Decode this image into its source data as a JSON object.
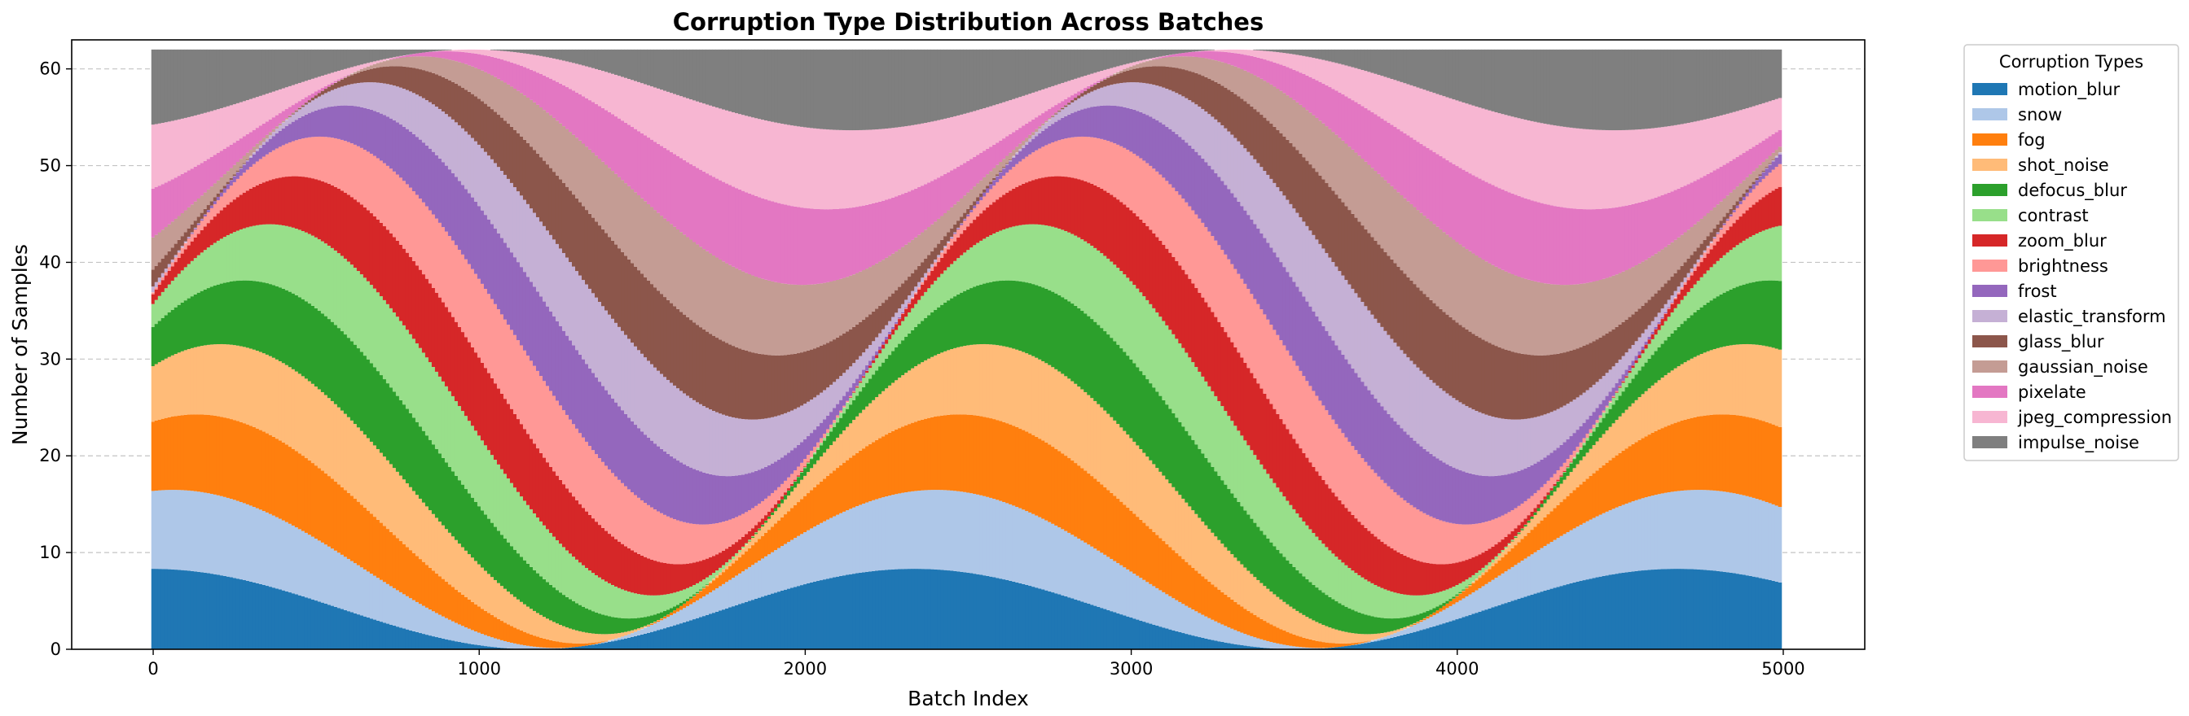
{
  "chart_data": {
    "type": "bar",
    "stacked": true,
    "title": "Corruption Type Distribution Across Batches",
    "xlabel": "Batch Index",
    "ylabel": "Number of Samples",
    "xlim": [
      -250,
      5250
    ],
    "ylim": [
      0,
      63
    ],
    "xticks": [
      0,
      1000,
      2000,
      3000,
      4000,
      5000
    ],
    "yticks": [
      0,
      10,
      20,
      30,
      40,
      50,
      60
    ],
    "grid": {
      "y": true,
      "x": false,
      "style": "dashed"
    },
    "legend": {
      "title": "Corruption Types",
      "placement": "outside-right-top"
    },
    "batch_size": 62,
    "cycle_batches": 2340,
    "peak_fraction": 0.5,
    "series": [
      {
        "name": "motion_blur",
        "color": "#1f77b4",
        "start": 0
      },
      {
        "name": "snow",
        "color": "#aec7e8",
        "start": 135
      },
      {
        "name": "fog",
        "color": "#ff7f0e",
        "start": 285
      },
      {
        "name": "shot_noise",
        "color": "#ffbb78",
        "start": 440
      },
      {
        "name": "defocus_blur",
        "color": "#2ca02c",
        "start": 595
      },
      {
        "name": "contrast",
        "color": "#98df8a",
        "start": 750
      },
      {
        "name": "zoom_blur",
        "color": "#d62728",
        "start": 905
      },
      {
        "name": "brightness",
        "color": "#ff9896",
        "start": 1060
      },
      {
        "name": "frost",
        "color": "#9467bd",
        "start": 1215
      },
      {
        "name": "elastic_transform",
        "color": "#c5b0d5",
        "start": 1370
      },
      {
        "name": "glass_blur",
        "color": "#8c564b",
        "start": 1525
      },
      {
        "name": "gaussian_noise",
        "color": "#c49c94",
        "start": 1680
      },
      {
        "name": "pixelate",
        "color": "#e377c2",
        "start": 1835
      },
      {
        "name": "jpeg_compression",
        "color": "#f7b6d2",
        "start": 1990
      },
      {
        "name": "impulse_noise",
        "color": "#7f7f7f",
        "start": 2145
      }
    ]
  }
}
